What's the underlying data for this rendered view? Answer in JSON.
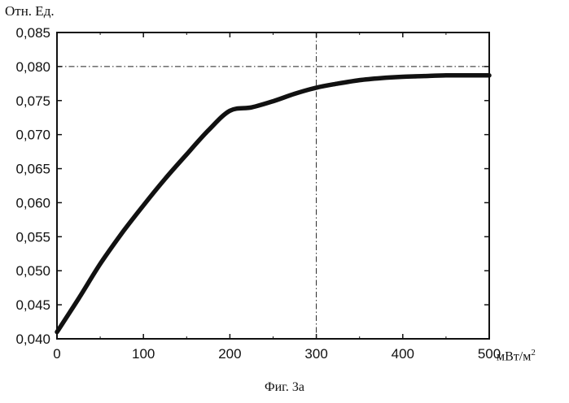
{
  "chart_data": {
    "type": "line",
    "title": "",
    "ylabel": "Отн. Ед.",
    "xlabel_prefix": "мВт/м",
    "xlabel_sup": "2",
    "caption": "Фиг. 3а",
    "xlim": [
      0,
      500
    ],
    "ylim": [
      0.04,
      0.085
    ],
    "x_ticks": [
      0,
      100,
      200,
      300,
      400,
      500
    ],
    "x_tick_labels": [
      "0",
      "100",
      "200",
      "300",
      "400",
      "500"
    ],
    "y_ticks": [
      0.04,
      0.045,
      0.05,
      0.055,
      0.06,
      0.065,
      0.07,
      0.075,
      0.08,
      0.085
    ],
    "y_tick_labels": [
      "0,040",
      "0,045",
      "0,050",
      "0,055",
      "0,060",
      "0,065",
      "0,070",
      "0,075",
      "0,080",
      "0,085"
    ],
    "grid": false,
    "reference_lines": {
      "x": 300,
      "y": 0.08
    },
    "series": [
      {
        "x": [
          0,
          25,
          50,
          75,
          100,
          125,
          150,
          175,
          200,
          225,
          250,
          275,
          300,
          325,
          350,
          375,
          400,
          425,
          450,
          475,
          500
        ],
        "y": [
          0.041,
          0.0459,
          0.051,
          0.0555,
          0.0596,
          0.0635,
          0.0671,
          0.0706,
          0.0735,
          0.074,
          0.0749,
          0.076,
          0.0769,
          0.0775,
          0.078,
          0.0783,
          0.0785,
          0.0786,
          0.0787,
          0.0787,
          0.0787
        ]
      }
    ]
  }
}
